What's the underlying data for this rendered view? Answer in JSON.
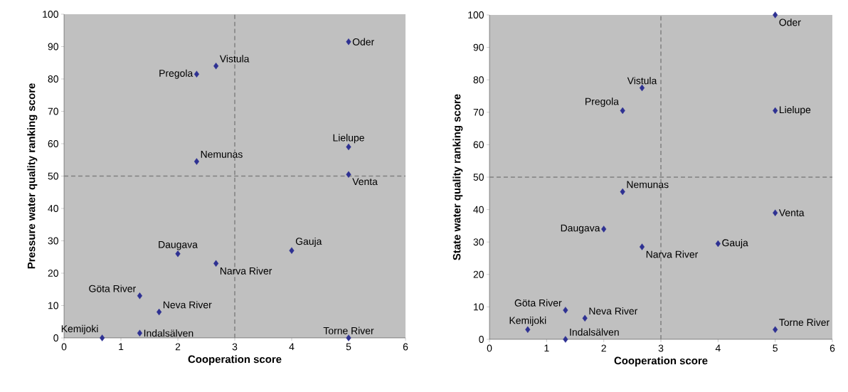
{
  "chart_data": [
    {
      "type": "scatter",
      "xlabel": "Cooperation score",
      "ylabel": "Pressure water quality ranking score",
      "xlim": [
        0,
        6
      ],
      "ylim": [
        0,
        100
      ],
      "xticks": [
        0,
        1,
        2,
        3,
        4,
        5,
        6
      ],
      "yticks": [
        0,
        10,
        20,
        30,
        40,
        50,
        60,
        70,
        80,
        90,
        100
      ],
      "marker": "diamond",
      "series": [
        {
          "color": "#2e3192",
          "x": [
            5,
            2.67,
            2.33,
            5,
            2.33,
            5,
            4,
            2,
            2.67,
            1.33,
            1.67,
            0.67,
            1.33,
            5
          ],
          "values": [
            91.5,
            84,
            81.5,
            59,
            54.5,
            50.5,
            27,
            26,
            23,
            13,
            8,
            0,
            1.5,
            0
          ]
        }
      ],
      "ref_lines": [
        {
          "axis": "x",
          "value": 3,
          "color": "#808080",
          "line_style": "dashed"
        },
        {
          "axis": "y",
          "value": 50,
          "color": "#808080",
          "line_style": "dashed"
        }
      ],
      "annotations": [
        {
          "text": "Oder",
          "x": 5,
          "y": 91.5
        },
        {
          "text": "Vistula",
          "x": 2.67,
          "y": 84
        },
        {
          "text": "Pregola",
          "x": 2.33,
          "y": 81.5
        },
        {
          "text": "Lielupe",
          "x": 5,
          "y": 59
        },
        {
          "text": "Nemunas",
          "x": 2.33,
          "y": 54.5
        },
        {
          "text": "Venta",
          "x": 5,
          "y": 50.5
        },
        {
          "text": "Gauja",
          "x": 4,
          "y": 27
        },
        {
          "text": "Daugava",
          "x": 2,
          "y": 26
        },
        {
          "text": "Narva River",
          "x": 2.67,
          "y": 23
        },
        {
          "text": "Göta River",
          "x": 1.33,
          "y": 13
        },
        {
          "text": "Neva River",
          "x": 1.67,
          "y": 8
        },
        {
          "text": "Kemijoki",
          "x": 0.67,
          "y": 0
        },
        {
          "text": "Indalsälven",
          "x": 1.33,
          "y": 1.5
        },
        {
          "text": "Torne River",
          "x": 5,
          "y": 0
        }
      ]
    },
    {
      "type": "scatter",
      "xlabel": "Cooperation score",
      "ylabel": "State water quality ranking score",
      "xlim": [
        0,
        6
      ],
      "ylim": [
        0,
        100
      ],
      "xticks": [
        0,
        1,
        2,
        3,
        4,
        5,
        6
      ],
      "yticks": [
        0,
        10,
        20,
        30,
        40,
        50,
        60,
        70,
        80,
        90,
        100
      ],
      "marker": "diamond",
      "series": [
        {
          "color": "#2e3192",
          "x": [
            5,
            2.67,
            2.33,
            5,
            2.33,
            5,
            2,
            4,
            2.67,
            1.33,
            1.67,
            0.67,
            1.33,
            5
          ],
          "values": [
            100,
            77.5,
            70.5,
            70.5,
            45.5,
            39,
            34,
            29.5,
            28.5,
            9,
            6.5,
            3,
            0,
            3
          ]
        }
      ],
      "ref_lines": [
        {
          "axis": "x",
          "value": 3,
          "color": "#808080",
          "line_style": "dashed"
        },
        {
          "axis": "y",
          "value": 50,
          "color": "#808080",
          "line_style": "dashed"
        }
      ],
      "annotations": [
        {
          "text": "Oder",
          "x": 5,
          "y": 100
        },
        {
          "text": "Vistula",
          "x": 2.67,
          "y": 77.5
        },
        {
          "text": "Pregola",
          "x": 2.33,
          "y": 70.5
        },
        {
          "text": "Lielupe",
          "x": 5,
          "y": 70.5
        },
        {
          "text": "Nemunas",
          "x": 2.33,
          "y": 45.5
        },
        {
          "text": "Venta",
          "x": 5,
          "y": 39
        },
        {
          "text": "Daugava",
          "x": 2,
          "y": 34
        },
        {
          "text": "Gauja",
          "x": 4,
          "y": 29.5
        },
        {
          "text": "Narva River",
          "x": 2.67,
          "y": 28.5
        },
        {
          "text": "Göta River",
          "x": 1.33,
          "y": 9
        },
        {
          "text": "Neva River",
          "x": 1.67,
          "y": 6.5
        },
        {
          "text": "Kemijoki",
          "x": 0.67,
          "y": 3
        },
        {
          "text": "Indalsälven",
          "x": 1.33,
          "y": 0
        },
        {
          "text": "Torne River",
          "x": 5,
          "y": 3
        }
      ]
    }
  ]
}
